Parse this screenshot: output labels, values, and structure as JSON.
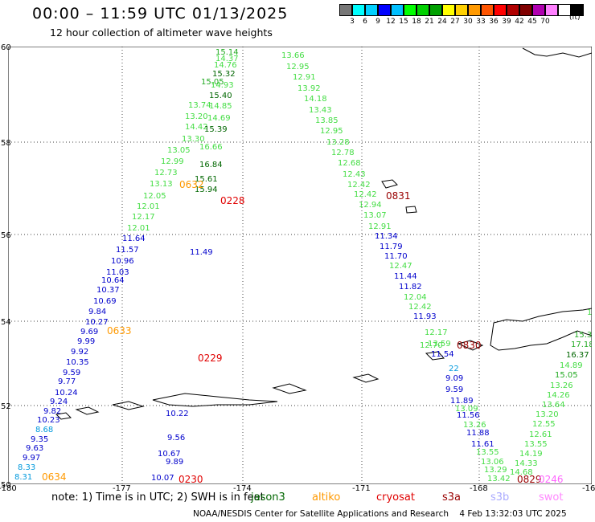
{
  "title": "00:00 – 11:59 UTC 01/13/2025",
  "subtitle": "12 hour collection of altimeter wave heights",
  "legend": {
    "colors": [
      "#777777",
      "#00ffff",
      "#00d0ff",
      "#0000ff",
      "#00c0ff",
      "#00ff00",
      "#00d000",
      "#00a000",
      "#ffff00",
      "#ffd000",
      "#ff9900",
      "#ff5500",
      "#ff0000",
      "#b00000",
      "#800000",
      "#b000b0",
      "#ff80ff",
      "#ffffff",
      "#000000"
    ],
    "labels": [
      "3",
      "6",
      "9",
      "12",
      "15",
      "18",
      "21",
      "24",
      "27",
      "30",
      "33",
      "36",
      "39",
      "42",
      "45",
      "70"
    ],
    "unit": "(ft)"
  },
  "axes": {
    "lat_labels": [
      "60",
      "58",
      "56",
      "54",
      "52",
      "50"
    ],
    "lon_labels": [
      "-180",
      "-177",
      "-174",
      "-171",
      "-168",
      "-16"
    ]
  },
  "tracks": [
    {
      "time": "0228",
      "color": "#e00000",
      "labels": [
        {
          "t": "15.14",
          "c": "#22aa22"
        },
        {
          "t": "14.37",
          "c": "#44dd44"
        },
        {
          "t": "14.76",
          "c": "#44dd44"
        },
        {
          "t": "15.32",
          "c": "#006600"
        },
        {
          "t": "15.05",
          "c": "#22aa22"
        },
        {
          "t": "14.93",
          "c": "#44dd44"
        },
        {
          "t": "15.40",
          "c": "#006600"
        },
        {
          "t": "14.85",
          "c": "#44dd44"
        },
        {
          "t": "13.74",
          "c": "#44dd44"
        },
        {
          "t": "14.69",
          "c": "#44dd44"
        },
        {
          "t": "13.20",
          "c": "#44dd44"
        },
        {
          "t": "14.42",
          "c": "#44dd44"
        },
        {
          "t": "15.39",
          "c": "#006600"
        },
        {
          "t": "13.30",
          "c": "#44dd44"
        },
        {
          "t": "13.05",
          "c": "#44dd44"
        },
        {
          "t": "16.66",
          "c": "#44dd44"
        },
        {
          "t": "12.99",
          "c": "#44dd44"
        },
        {
          "t": "16.84",
          "c": "#006600"
        },
        {
          "t": "12.73",
          "c": "#44dd44"
        },
        {
          "t": "13.13",
          "c": "#44dd44"
        },
        {
          "t": "15.61",
          "c": "#006600"
        },
        {
          "t": "15.94",
          "c": "#006600"
        },
        {
          "t": "12.05",
          "c": "#44dd44"
        },
        {
          "t": "12.01",
          "c": "#44dd44"
        },
        {
          "t": "12.17",
          "c": "#44dd44"
        },
        {
          "t": "12.01",
          "c": "#44dd44"
        },
        {
          "t": "11.64",
          "c": "#0000cc"
        },
        {
          "t": "11.57",
          "c": "#0000cc"
        },
        {
          "t": "10.96",
          "c": "#0000cc"
        },
        {
          "t": "11.03",
          "c": "#0000cc"
        },
        {
          "t": "11.49",
          "c": "#0000cc"
        },
        {
          "t": "10.64",
          "c": "#0000cc"
        },
        {
          "t": "10.37",
          "c": "#0000cc"
        },
        {
          "t": "10.69",
          "c": "#0000cc"
        },
        {
          "t": "9.84",
          "c": "#0000cc"
        },
        {
          "t": "10.27",
          "c": "#0000cc"
        },
        {
          "t": "9.69",
          "c": "#0000cc"
        },
        {
          "t": "9.99",
          "c": "#0000cc"
        },
        {
          "t": "9.92",
          "c": "#0000cc"
        },
        {
          "t": "10.35",
          "c": "#0000cc"
        },
        {
          "t": "9.59",
          "c": "#0000cc"
        },
        {
          "t": "9.77",
          "c": "#0000cc"
        },
        {
          "t": "10.24",
          "c": "#0000cc"
        },
        {
          "t": "9.24",
          "c": "#0000cc"
        },
        {
          "t": "9.82",
          "c": "#0000cc"
        },
        {
          "t": "10.23",
          "c": "#0000cc"
        },
        {
          "t": "8.68",
          "c": "#0099dd"
        },
        {
          "t": "9.35",
          "c": "#0000cc"
        },
        {
          "t": "9.63",
          "c": "#0000cc"
        },
        {
          "t": "9.97",
          "c": "#0000cc"
        },
        {
          "t": "8.33",
          "c": "#0099dd"
        },
        {
          "t": "8.31",
          "c": "#0099dd"
        },
        {
          "t": "10.22",
          "c": "#0000cc"
        },
        {
          "t": "10.67",
          "c": "#0000cc"
        },
        {
          "t": "10.07",
          "c": "#0000cc"
        },
        {
          "t": "9.89",
          "c": "#0000cc"
        },
        {
          "t": "9.56",
          "c": "#0000cc"
        }
      ]
    },
    {
      "time": "0831",
      "color": "#990000",
      "labels": [
        {
          "t": "13.66",
          "c": "#44dd44"
        },
        {
          "t": "12.95",
          "c": "#44dd44"
        },
        {
          "t": "12.91",
          "c": "#44dd44"
        },
        {
          "t": "13.92",
          "c": "#44dd44"
        },
        {
          "t": "14.18",
          "c": "#44dd44"
        },
        {
          "t": "13.43",
          "c": "#44dd44"
        },
        {
          "t": "13.85",
          "c": "#44dd44"
        },
        {
          "t": "12.95",
          "c": "#44dd44"
        },
        {
          "t": "13.28",
          "c": "#44dd44"
        },
        {
          "t": "12.78",
          "c": "#44dd44"
        },
        {
          "t": "12.68",
          "c": "#44dd44"
        },
        {
          "t": "12.43",
          "c": "#44dd44"
        },
        {
          "t": "12.42",
          "c": "#44dd44"
        },
        {
          "t": "12.42",
          "c": "#44dd44"
        },
        {
          "t": "12.94",
          "c": "#44dd44"
        },
        {
          "t": "13.07",
          "c": "#44dd44"
        },
        {
          "t": "12.91",
          "c": "#44dd44"
        },
        {
          "t": "11.34",
          "c": "#0000cc"
        },
        {
          "t": "11.79",
          "c": "#0000cc"
        },
        {
          "t": "11.70",
          "c": "#0000cc"
        },
        {
          "t": "12.47",
          "c": "#44dd44"
        },
        {
          "t": "11.44",
          "c": "#0000cc"
        },
        {
          "t": "11.82",
          "c": "#0000cc"
        },
        {
          "t": "12.04",
          "c": "#44dd44"
        },
        {
          "t": "12.42",
          "c": "#44dd44"
        },
        {
          "t": "11.93",
          "c": "#0000cc"
        },
        {
          "t": "12.70",
          "c": "#44dd44"
        },
        {
          "t": "12.17",
          "c": "#44dd44"
        },
        {
          "t": "13.59",
          "c": "#44dd44"
        },
        {
          "t": "11.54",
          "c": "#0000cc"
        }
      ]
    },
    {
      "time": "0830",
      "color": "#990000",
      "labels": [
        {
          "t": "9.09",
          "c": "#0000cc"
        },
        {
          "t": "9.59",
          "c": "#0000cc"
        },
        {
          "t": "11.89",
          "c": "#0000cc"
        },
        {
          "t": "13.09",
          "c": "#44dd44"
        },
        {
          "t": "11.56",
          "c": "#0000cc"
        },
        {
          "t": "13.26",
          "c": "#44dd44"
        },
        {
          "t": "11.88",
          "c": "#0000cc"
        },
        {
          "t": "11.61",
          "c": "#0000cc"
        },
        {
          "t": "13.55",
          "c": "#44dd44"
        },
        {
          "t": "13.06",
          "c": "#44dd44"
        },
        {
          "t": "13.29",
          "c": "#44dd44"
        },
        {
          "t": "13.42",
          "c": "#44dd44"
        },
        {
          "t": "17.18",
          "c": "#22aa22"
        },
        {
          "t": "16.37",
          "c": "#006600"
        },
        {
          "t": "14.89",
          "c": "#44dd44"
        },
        {
          "t": "15.05",
          "c": "#22aa22"
        },
        {
          "t": "13.26",
          "c": "#44dd44"
        },
        {
          "t": "14.26",
          "c": "#44dd44"
        },
        {
          "t": "13.64",
          "c": "#44dd44"
        },
        {
          "t": "13.20",
          "c": "#44dd44"
        },
        {
          "t": "12.55",
          "c": "#44dd44"
        },
        {
          "t": "12.61",
          "c": "#44dd44"
        },
        {
          "t": "13.55",
          "c": "#44dd44"
        },
        {
          "t": "14.19",
          "c": "#44dd44"
        },
        {
          "t": "14.33",
          "c": "#44dd44"
        },
        {
          "t": "14.68",
          "c": "#44dd44"
        },
        {
          "t": "15.3",
          "c": "#22aa22"
        },
        {
          "t": "11",
          "c": "#44dd44"
        },
        {
          "t": "22",
          "c": "#0099dd"
        }
      ]
    },
    {
      "time": "0229",
      "color": "#e00000",
      "labels": []
    },
    {
      "time": "0230",
      "color": "#e00000",
      "labels": []
    },
    {
      "time": "0632",
      "color": "#ff9900",
      "labels": []
    },
    {
      "time": "0633",
      "color": "#ff9900",
      "labels": []
    },
    {
      "time": "0634",
      "color": "#ff9900",
      "labels": []
    },
    {
      "time": "0829",
      "color": "#990000",
      "labels": []
    },
    {
      "time": "0246",
      "color": "#ff66ff",
      "labels": []
    }
  ],
  "note": "note: 1) Time is in UTC; 2) SWH is in feet",
  "satellites": [
    {
      "name": "jason3",
      "color": "#006600"
    },
    {
      "name": "altiko",
      "color": "#ff9900"
    },
    {
      "name": "cryosat",
      "color": "#e00000"
    },
    {
      "name": "s3a",
      "color": "#990000"
    },
    {
      "name": "s3b",
      "color": "#aaaaff"
    },
    {
      "name": "swot",
      "color": "#ff88ff"
    }
  ],
  "credit": "NOAA/NESDIS Center for Satellite Applications and Research    4 Feb 13:32:03 UTC 2025"
}
